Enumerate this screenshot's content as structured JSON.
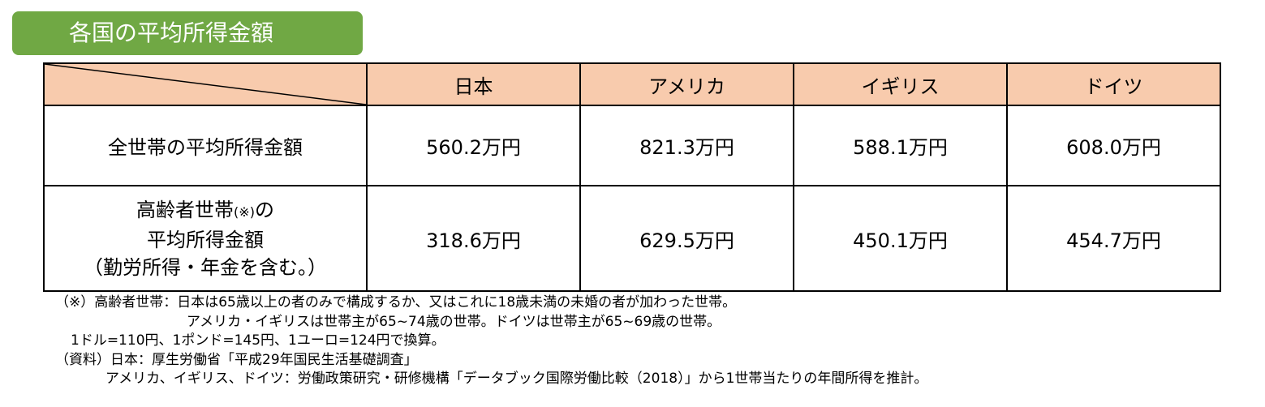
{
  "title": "各国の平均所得金額",
  "colors": {
    "title_bg": "#70a844",
    "header_bg": "#f8cbad"
  },
  "table": {
    "columns": [
      "日本",
      "アメリカ",
      "イギリス",
      "ドイツ"
    ],
    "rows": [
      {
        "label": "全世帯の平均所得金額",
        "values": [
          "560.2万円",
          "821.3万円",
          "588.1万円",
          "608.0万円"
        ]
      },
      {
        "label_line1": "高齢者世帯",
        "label_mark": "(※)",
        "label_line1_end": "の",
        "label_line2": "平均所得金額",
        "label_line3": "（勤労所得・年金を含む。）",
        "values": [
          "318.6万円",
          "629.5万円",
          "450.1万円",
          "454.7万円"
        ]
      }
    ]
  },
  "notes": [
    "（※）高齢者世帯：日本は65歳以上の者のみで構成するか、又はこれに18歳未満の未婚の者が加わった世帯。",
    "アメリカ・イギリスは世帯主が65~74歳の世帯。ドイツは世帯主が65~69歳の世帯。",
    "1ドル=110円、1ポンド=145円、1ユーロ=124円で換算。",
    "（資料）日本：厚生労働省「平成29年国民生活基礎調査」",
    "アメリカ、イギリス、ドイツ：労働政策研究・研修機構「データブック国際労働比較（2018）」から1世帯当たりの年間所得を推計。"
  ]
}
